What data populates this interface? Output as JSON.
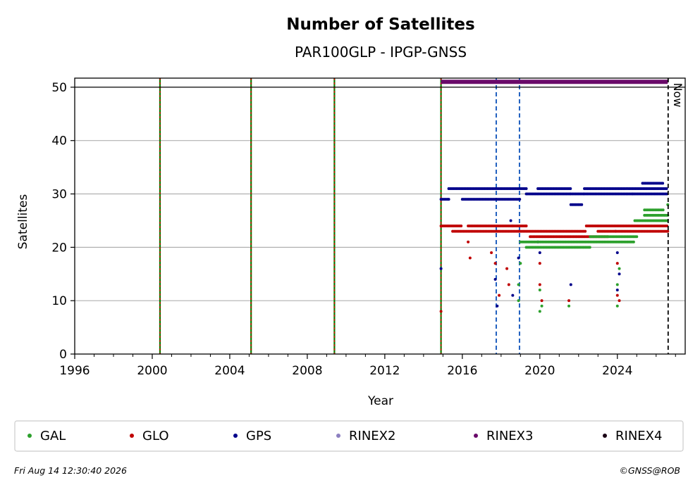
{
  "chart_data": {
    "type": "scatter",
    "title": "Number of Satellites",
    "subtitle": "PAR100GLP - IPGP-GNSS",
    "xlabel": "Year",
    "ylabel": "Satellites",
    "xlim": [
      1996,
      2027.5
    ],
    "ylim": [
      0,
      51.7
    ],
    "xticks": [
      "1996",
      "2000",
      "2004",
      "2008",
      "2012",
      "2016",
      "2020",
      "2024"
    ],
    "yticks": [
      "0",
      "10",
      "20",
      "30",
      "40",
      "50"
    ],
    "grid": "horizontal",
    "reference_line_y": 50,
    "now_label": "Now",
    "now_x": 2026.62,
    "green_red_vlines": [
      2000.4,
      2005.1,
      2009.4,
      2014.9
    ],
    "blue_dashed_vlines": [
      2017.75,
      2018.95
    ],
    "rinex3_bar": {
      "start": 2014.9,
      "end": 2026.6,
      "y": 51
    },
    "legend": {
      "placement": "bottom",
      "items": [
        {
          "label": "GAL",
          "color": "#2ca02c"
        },
        {
          "label": "GLO",
          "color": "#c00000"
        },
        {
          "label": "GPS",
          "color": "#00008b"
        },
        {
          "label": "RINEX2",
          "color": "#8c7fc0"
        },
        {
          "label": "RINEX3",
          "color": "#6a0a6a"
        },
        {
          "label": "RINEX4",
          "color": "#1a0014"
        }
      ]
    },
    "series": [
      {
        "name": "GPS",
        "color": "#00008b",
        "segments": [
          {
            "x_start": 2014.9,
            "x_end": 2015.3,
            "y": 29
          },
          {
            "x_start": 2015.3,
            "x_end": 2019.3,
            "y": 31
          },
          {
            "x_start": 2016.0,
            "x_end": 2019.0,
            "y": 29
          },
          {
            "x_start": 2019.3,
            "x_end": 2021.6,
            "y": 30
          },
          {
            "x_start": 2019.9,
            "x_end": 2021.6,
            "y": 31
          },
          {
            "x_start": 2021.6,
            "x_end": 2022.3,
            "y": 30
          },
          {
            "x_start": 2021.6,
            "x_end": 2022.2,
            "y": 28
          },
          {
            "x_start": 2022.3,
            "x_end": 2024.8,
            "y": 30
          },
          {
            "x_start": 2022.3,
            "x_end": 2026.6,
            "y": 31
          },
          {
            "x_start": 2024.8,
            "x_end": 2026.6,
            "y": 30
          },
          {
            "x_start": 2025.3,
            "x_end": 2026.4,
            "y": 32
          }
        ],
        "outliers": [
          [
            2014.9,
            16
          ],
          [
            2017.7,
            14
          ],
          [
            2017.8,
            9
          ],
          [
            2018.5,
            25
          ],
          [
            2018.6,
            11
          ],
          [
            2018.9,
            18
          ],
          [
            2019.9,
            21
          ],
          [
            2020.0,
            19
          ],
          [
            2021.6,
            13
          ],
          [
            2023.9,
            23
          ],
          [
            2024.0,
            19
          ],
          [
            2024.1,
            15
          ],
          [
            2024.0,
            12
          ]
        ]
      },
      {
        "name": "GLO",
        "color": "#c00000",
        "segments": [
          {
            "x_start": 2014.9,
            "x_end": 2016.0,
            "y": 24
          },
          {
            "x_start": 2015.5,
            "x_end": 2018.9,
            "y": 23
          },
          {
            "x_start": 2016.3,
            "x_end": 2019.3,
            "y": 24
          },
          {
            "x_start": 2018.9,
            "x_end": 2022.4,
            "y": 23
          },
          {
            "x_start": 2019.5,
            "x_end": 2023.5,
            "y": 22
          },
          {
            "x_start": 2022.4,
            "x_end": 2026.6,
            "y": 24
          },
          {
            "x_start": 2023.0,
            "x_end": 2026.6,
            "y": 23
          }
        ],
        "outliers": [
          [
            2014.9,
            8
          ],
          [
            2016.3,
            21
          ],
          [
            2016.4,
            18
          ],
          [
            2017.5,
            19
          ],
          [
            2017.7,
            17
          ],
          [
            2017.9,
            11
          ],
          [
            2018.3,
            16
          ],
          [
            2018.4,
            13
          ],
          [
            2018.6,
            24
          ],
          [
            2019.3,
            24
          ],
          [
            2020.0,
            17
          ],
          [
            2020.0,
            13
          ],
          [
            2020.1,
            10
          ],
          [
            2021.5,
            10
          ],
          [
            2024.0,
            17
          ],
          [
            2024.0,
            11
          ],
          [
            2024.1,
            10
          ]
        ]
      },
      {
        "name": "GAL",
        "color": "#2ca02c",
        "segments": [
          {
            "x_start": 2019.0,
            "x_end": 2024.9,
            "y": 21
          },
          {
            "x_start": 2019.3,
            "x_end": 2022.6,
            "y": 20
          },
          {
            "x_start": 2022.6,
            "x_end": 2025.0,
            "y": 22
          },
          {
            "x_start": 2024.9,
            "x_end": 2026.6,
            "y": 25
          },
          {
            "x_start": 2025.4,
            "x_end": 2026.6,
            "y": 26
          },
          {
            "x_start": 2025.4,
            "x_end": 2026.4,
            "y": 27
          }
        ],
        "outliers": [
          [
            2018.9,
            10
          ],
          [
            2018.9,
            13
          ],
          [
            2019.0,
            17
          ],
          [
            2020.0,
            8
          ],
          [
            2020.0,
            12
          ],
          [
            2020.1,
            9
          ],
          [
            2021.5,
            9
          ],
          [
            2024.0,
            9
          ],
          [
            2024.0,
            13
          ],
          [
            2024.1,
            16
          ],
          [
            2026.6,
            28
          ]
        ]
      }
    ]
  },
  "footer": {
    "timestamp": "Fri Aug 14 12:30:40 2026",
    "credit": "©GNSS@ROB"
  }
}
